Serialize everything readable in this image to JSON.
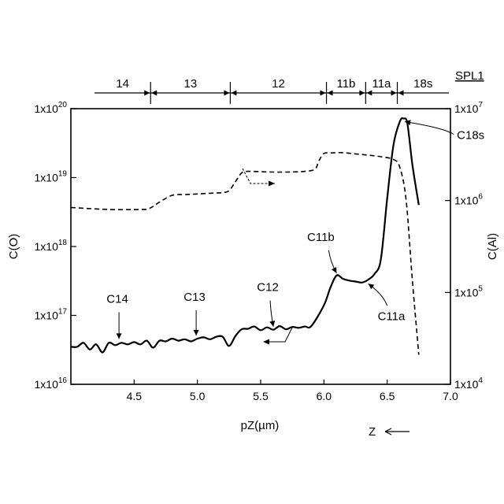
{
  "chart_data": {
    "type": "line",
    "title": "",
    "xlabel": "pZ(µm)",
    "ylabel_left": "C(O)",
    "ylabel_right": "C(Al)",
    "direction_label": "Z",
    "sample_label": "SPL1",
    "xlim": [
      4.0,
      7.0
    ],
    "x_ticks": [
      4.5,
      5.0,
      5.5,
      6.0,
      6.5,
      7.0
    ],
    "x_tick_labels": [
      "4.5",
      "5.0",
      "5.5",
      "6.0",
      "6.5",
      "7.0"
    ],
    "y_left_scale": "log",
    "y_left_lim": [
      1e+16,
      1e+20
    ],
    "y_left_ticks": [
      {
        "value": 1e+16,
        "base": "1x10",
        "exp": "16"
      },
      {
        "value": 1e+17,
        "base": "1x10",
        "exp": "17"
      },
      {
        "value": 1e+18,
        "base": "1x10",
        "exp": "18"
      },
      {
        "value": 1e+19,
        "base": "1x10",
        "exp": "19"
      },
      {
        "value": 1e+20,
        "base": "1x10",
        "exp": "20"
      }
    ],
    "y_right_scale": "log",
    "y_right_lim": [
      10000.0,
      10000000.0
    ],
    "y_right_ticks": [
      {
        "value": 10000.0,
        "base": "1x10",
        "exp": "4"
      },
      {
        "value": 100000.0,
        "base": "1x10",
        "exp": "5"
      },
      {
        "value": 1000000.0,
        "base": "1x10",
        "exp": "6"
      },
      {
        "value": 10000000.0,
        "base": "1x10",
        "exp": "7"
      }
    ],
    "layers": [
      {
        "label": "14",
        "from": 4.0,
        "to": 4.63
      },
      {
        "label": "13",
        "from": 4.63,
        "to": 5.26
      },
      {
        "label": "12",
        "from": 5.26,
        "to": 6.02
      },
      {
        "label": "11b",
        "from": 6.02,
        "to": 6.33
      },
      {
        "label": "11a",
        "from": 6.33,
        "to": 6.58
      },
      {
        "label": "18s",
        "from": 6.58,
        "to": 7.0
      }
    ],
    "series": [
      {
        "axis": "left",
        "style": "solid",
        "x": [
          4.0,
          4.05,
          4.1,
          4.15,
          4.2,
          4.25,
          4.3,
          4.35,
          4.4,
          4.45,
          4.5,
          4.55,
          4.6,
          4.65,
          4.7,
          4.75,
          4.8,
          4.85,
          4.9,
          4.95,
          5.0,
          5.05,
          5.1,
          5.15,
          5.2,
          5.25,
          5.3,
          5.35,
          5.4,
          5.45,
          5.5,
          5.55,
          5.6,
          5.65,
          5.7,
          5.75,
          5.8,
          5.85,
          5.9,
          6.0,
          6.05,
          6.1,
          6.15,
          6.2,
          6.25,
          6.3,
          6.35,
          6.4,
          6.45,
          6.5,
          6.55,
          6.6,
          6.63,
          6.66,
          6.7,
          6.75
        ],
        "y": [
          3.5e+16,
          3.5e+16,
          4e+16,
          3.2e+16,
          3.8e+16,
          2.9e+16,
          4e+16,
          3.7e+16,
          4e+16,
          3.8e+16,
          4.1e+16,
          3.8e+16,
          4.3e+16,
          3.4e+16,
          4.3e+16,
          4.2e+16,
          4.6e+16,
          4.3e+16,
          4.5e+16,
          4.2e+16,
          4.6e+16,
          4.8e+16,
          4.5e+16,
          4.9e+16,
          4.9e+16,
          3.6e+16,
          5e+16,
          6.3e+16,
          6.4e+16,
          6.9e+16,
          6.1e+16,
          6.7e+16,
          6.2e+16,
          7e+16,
          6.3e+16,
          6.8e+16,
          6.6e+16,
          6.9e+16,
          7e+16,
          1.4e+17,
          2.5e+17,
          3.8e+17,
          3.4e+17,
          3.2e+17,
          3.1e+17,
          3e+17,
          3.3e+17,
          4e+17,
          6.5e+17,
          5e+18,
          3e+19,
          6.5e+19,
          7.2e+19,
          6e+19,
          1.5e+19,
          4e+18
        ]
      },
      {
        "axis": "right",
        "style": "dashed",
        "x": [
          4.0,
          4.3,
          4.55,
          4.62,
          4.7,
          4.8,
          4.9,
          5.0,
          5.1,
          5.2,
          5.25,
          5.3,
          5.35,
          5.4,
          5.55,
          5.7,
          5.85,
          5.93,
          5.96,
          6.0,
          6.05,
          6.1,
          6.15,
          6.25,
          6.35,
          6.45,
          6.55,
          6.6,
          6.65,
          6.7,
          6.75
        ],
        "y": [
          840000.0,
          800000.0,
          800000.0,
          820000.0,
          960000.0,
          1140000.0,
          1160000.0,
          1180000.0,
          1200000.0,
          1220000.0,
          1280000.0,
          1600000.0,
          2000000.0,
          2080000.0,
          2050000.0,
          2040000.0,
          2080000.0,
          2200000.0,
          2700000.0,
          3250000.0,
          3300000.0,
          3320000.0,
          3320000.0,
          3220000.0,
          3120000.0,
          3000000.0,
          2800000.0,
          2300000.0,
          1000000.0,
          130000.0,
          21000.0
        ]
      }
    ],
    "annotations": [
      {
        "text": "C14",
        "point": [
          4.38,
          4.1e+16
        ]
      },
      {
        "text": "C13",
        "point": [
          4.99,
          4.6e+16
        ]
      },
      {
        "text": "C12",
        "point": [
          5.6,
          6.2e+16
        ]
      },
      {
        "text": "C11b",
        "point": [
          6.1,
          3.7e+17
        ]
      },
      {
        "text": "C11a",
        "point": [
          6.35,
          3.2e+17
        ]
      },
      {
        "text": "C18s",
        "point": [
          6.64,
          7.2e+19
        ]
      }
    ]
  }
}
